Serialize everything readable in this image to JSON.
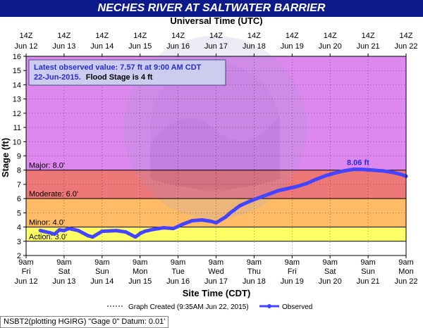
{
  "title": "NECHES RIVER AT SALTWATER BARRIER",
  "footer_note": "NSBT2(plotting HGIRG) \"Gage 0\" Datum: 0.01'",
  "colors": {
    "title_bg": "#0d1a8c",
    "major": "#dd88ee",
    "moderate": "#ee7777",
    "minor": "#ffbb66",
    "action": "#ffff66",
    "below": "#ffffff",
    "observed": "#4444ff"
  },
  "chart_data": {
    "type": "line",
    "xlabel": "Site Time (CDT)",
    "x2label": "Universal Time (UTC)",
    "ylabel": "Stage (ft)",
    "ylim": [
      2,
      16
    ],
    "yticks": [
      2,
      3,
      4,
      5,
      6,
      7,
      8,
      9,
      10,
      11,
      12,
      13,
      14,
      15,
      16
    ],
    "grid": true,
    "bottom_ticks": [
      {
        "line1": "9am",
        "line2": "Fri",
        "line3": "Jun 12"
      },
      {
        "line1": "9am",
        "line2": "Sat",
        "line3": "Jun 13"
      },
      {
        "line1": "9am",
        "line2": "Sun",
        "line3": "Jun 14"
      },
      {
        "line1": "9am",
        "line2": "Mon",
        "line3": "Jun 15"
      },
      {
        "line1": "9am",
        "line2": "Tue",
        "line3": "Jun 16"
      },
      {
        "line1": "9am",
        "line2": "Wed",
        "line3": "Jun 17"
      },
      {
        "line1": "9am",
        "line2": "Thu",
        "line3": "Jun 18"
      },
      {
        "line1": "9am",
        "line2": "Fri",
        "line3": "Jun 19"
      },
      {
        "line1": "9am",
        "line2": "Sat",
        "line3": "Jun 20"
      },
      {
        "line1": "9am",
        "line2": "Sun",
        "line3": "Jun 21"
      },
      {
        "line1": "9am",
        "line2": "Mon",
        "line3": "Jun 22"
      }
    ],
    "top_ticks": [
      {
        "line1": "14Z",
        "line2": "Jun 12"
      },
      {
        "line1": "14Z",
        "line2": "Jun 13"
      },
      {
        "line1": "14Z",
        "line2": "Jun 14"
      },
      {
        "line1": "14Z",
        "line2": "Jun 15"
      },
      {
        "line1": "14Z",
        "line2": "Jun 16"
      },
      {
        "line1": "14Z",
        "line2": "Jun 17"
      },
      {
        "line1": "14Z",
        "line2": "Jun 18"
      },
      {
        "line1": "14Z",
        "line2": "Jun 19"
      },
      {
        "line1": "14Z",
        "line2": "Jun 20"
      },
      {
        "line1": "14Z",
        "line2": "Jun 21"
      },
      {
        "line1": "14Z",
        "line2": "Jun 22"
      }
    ],
    "x_range": [
      "2015-06-12T09:00",
      "2015-06-22T09:00"
    ],
    "flood_categories": [
      {
        "name": "Major",
        "label": "Major: 8.0'",
        "from": 8.0,
        "to": 16
      },
      {
        "name": "Moderate",
        "label": "Moderate: 6.0'",
        "from": 6.0,
        "to": 8.0
      },
      {
        "name": "Minor",
        "label": "Minor: 4.0'",
        "from": 4.0,
        "to": 6.0
      },
      {
        "name": "Action",
        "label": "Action: 3.0'",
        "from": 3.0,
        "to": 4.0
      }
    ],
    "info_box": {
      "line1": "Latest observed value: 7.57 ft at 9:00 AM CDT",
      "line2a": "22-Jun-2015.",
      "line2b": "Flood Stage is 4 ft"
    },
    "peak_label": "8.06 ft",
    "peak": {
      "x": "2015-06-21T00:00",
      "y": 8.06
    },
    "legend": {
      "created": "Graph Created (9:35AM Jun 22, 2015)",
      "observed": "Observed"
    },
    "series": [
      {
        "name": "Observed",
        "points": [
          [
            "2015-06-12T18:00",
            3.75
          ],
          [
            "2015-06-13T00:00",
            3.6
          ],
          [
            "2015-06-13T03:00",
            3.5
          ],
          [
            "2015-06-13T06:00",
            3.8
          ],
          [
            "2015-06-13T09:00",
            3.75
          ],
          [
            "2015-06-13T12:00",
            3.9
          ],
          [
            "2015-06-13T18:00",
            3.75
          ],
          [
            "2015-06-14T00:00",
            3.4
          ],
          [
            "2015-06-14T03:00",
            3.3
          ],
          [
            "2015-06-14T09:00",
            3.7
          ],
          [
            "2015-06-14T18:00",
            3.75
          ],
          [
            "2015-06-15T00:00",
            3.65
          ],
          [
            "2015-06-15T06:00",
            3.3
          ],
          [
            "2015-06-15T09:00",
            3.55
          ],
          [
            "2015-06-15T12:00",
            3.7
          ],
          [
            "2015-06-15T18:00",
            3.85
          ],
          [
            "2015-06-16T00:00",
            3.95
          ],
          [
            "2015-06-16T06:00",
            3.9
          ],
          [
            "2015-06-16T12:00",
            4.2
          ],
          [
            "2015-06-16T18:00",
            4.45
          ],
          [
            "2015-06-17T00:00",
            4.5
          ],
          [
            "2015-06-17T06:00",
            4.4
          ],
          [
            "2015-06-17T09:00",
            4.3
          ],
          [
            "2015-06-17T15:00",
            4.7
          ],
          [
            "2015-06-17T18:00",
            5.0
          ],
          [
            "2015-06-18T00:00",
            5.5
          ],
          [
            "2015-06-18T06:00",
            5.8
          ],
          [
            "2015-06-18T12:00",
            6.05
          ],
          [
            "2015-06-18T18:00",
            6.3
          ],
          [
            "2015-06-19T00:00",
            6.55
          ],
          [
            "2015-06-19T06:00",
            6.7
          ],
          [
            "2015-06-19T12:00",
            6.85
          ],
          [
            "2015-06-19T18:00",
            7.05
          ],
          [
            "2015-06-20T00:00",
            7.35
          ],
          [
            "2015-06-20T06:00",
            7.6
          ],
          [
            "2015-06-20T12:00",
            7.8
          ],
          [
            "2015-06-20T18:00",
            7.95
          ],
          [
            "2015-06-21T00:00",
            8.06
          ],
          [
            "2015-06-21T06:00",
            8.05
          ],
          [
            "2015-06-21T12:00",
            8.0
          ],
          [
            "2015-06-21T18:00",
            7.95
          ],
          [
            "2015-06-22T00:00",
            7.85
          ],
          [
            "2015-06-22T06:00",
            7.7
          ],
          [
            "2015-06-22T09:00",
            7.57
          ]
        ]
      }
    ]
  }
}
